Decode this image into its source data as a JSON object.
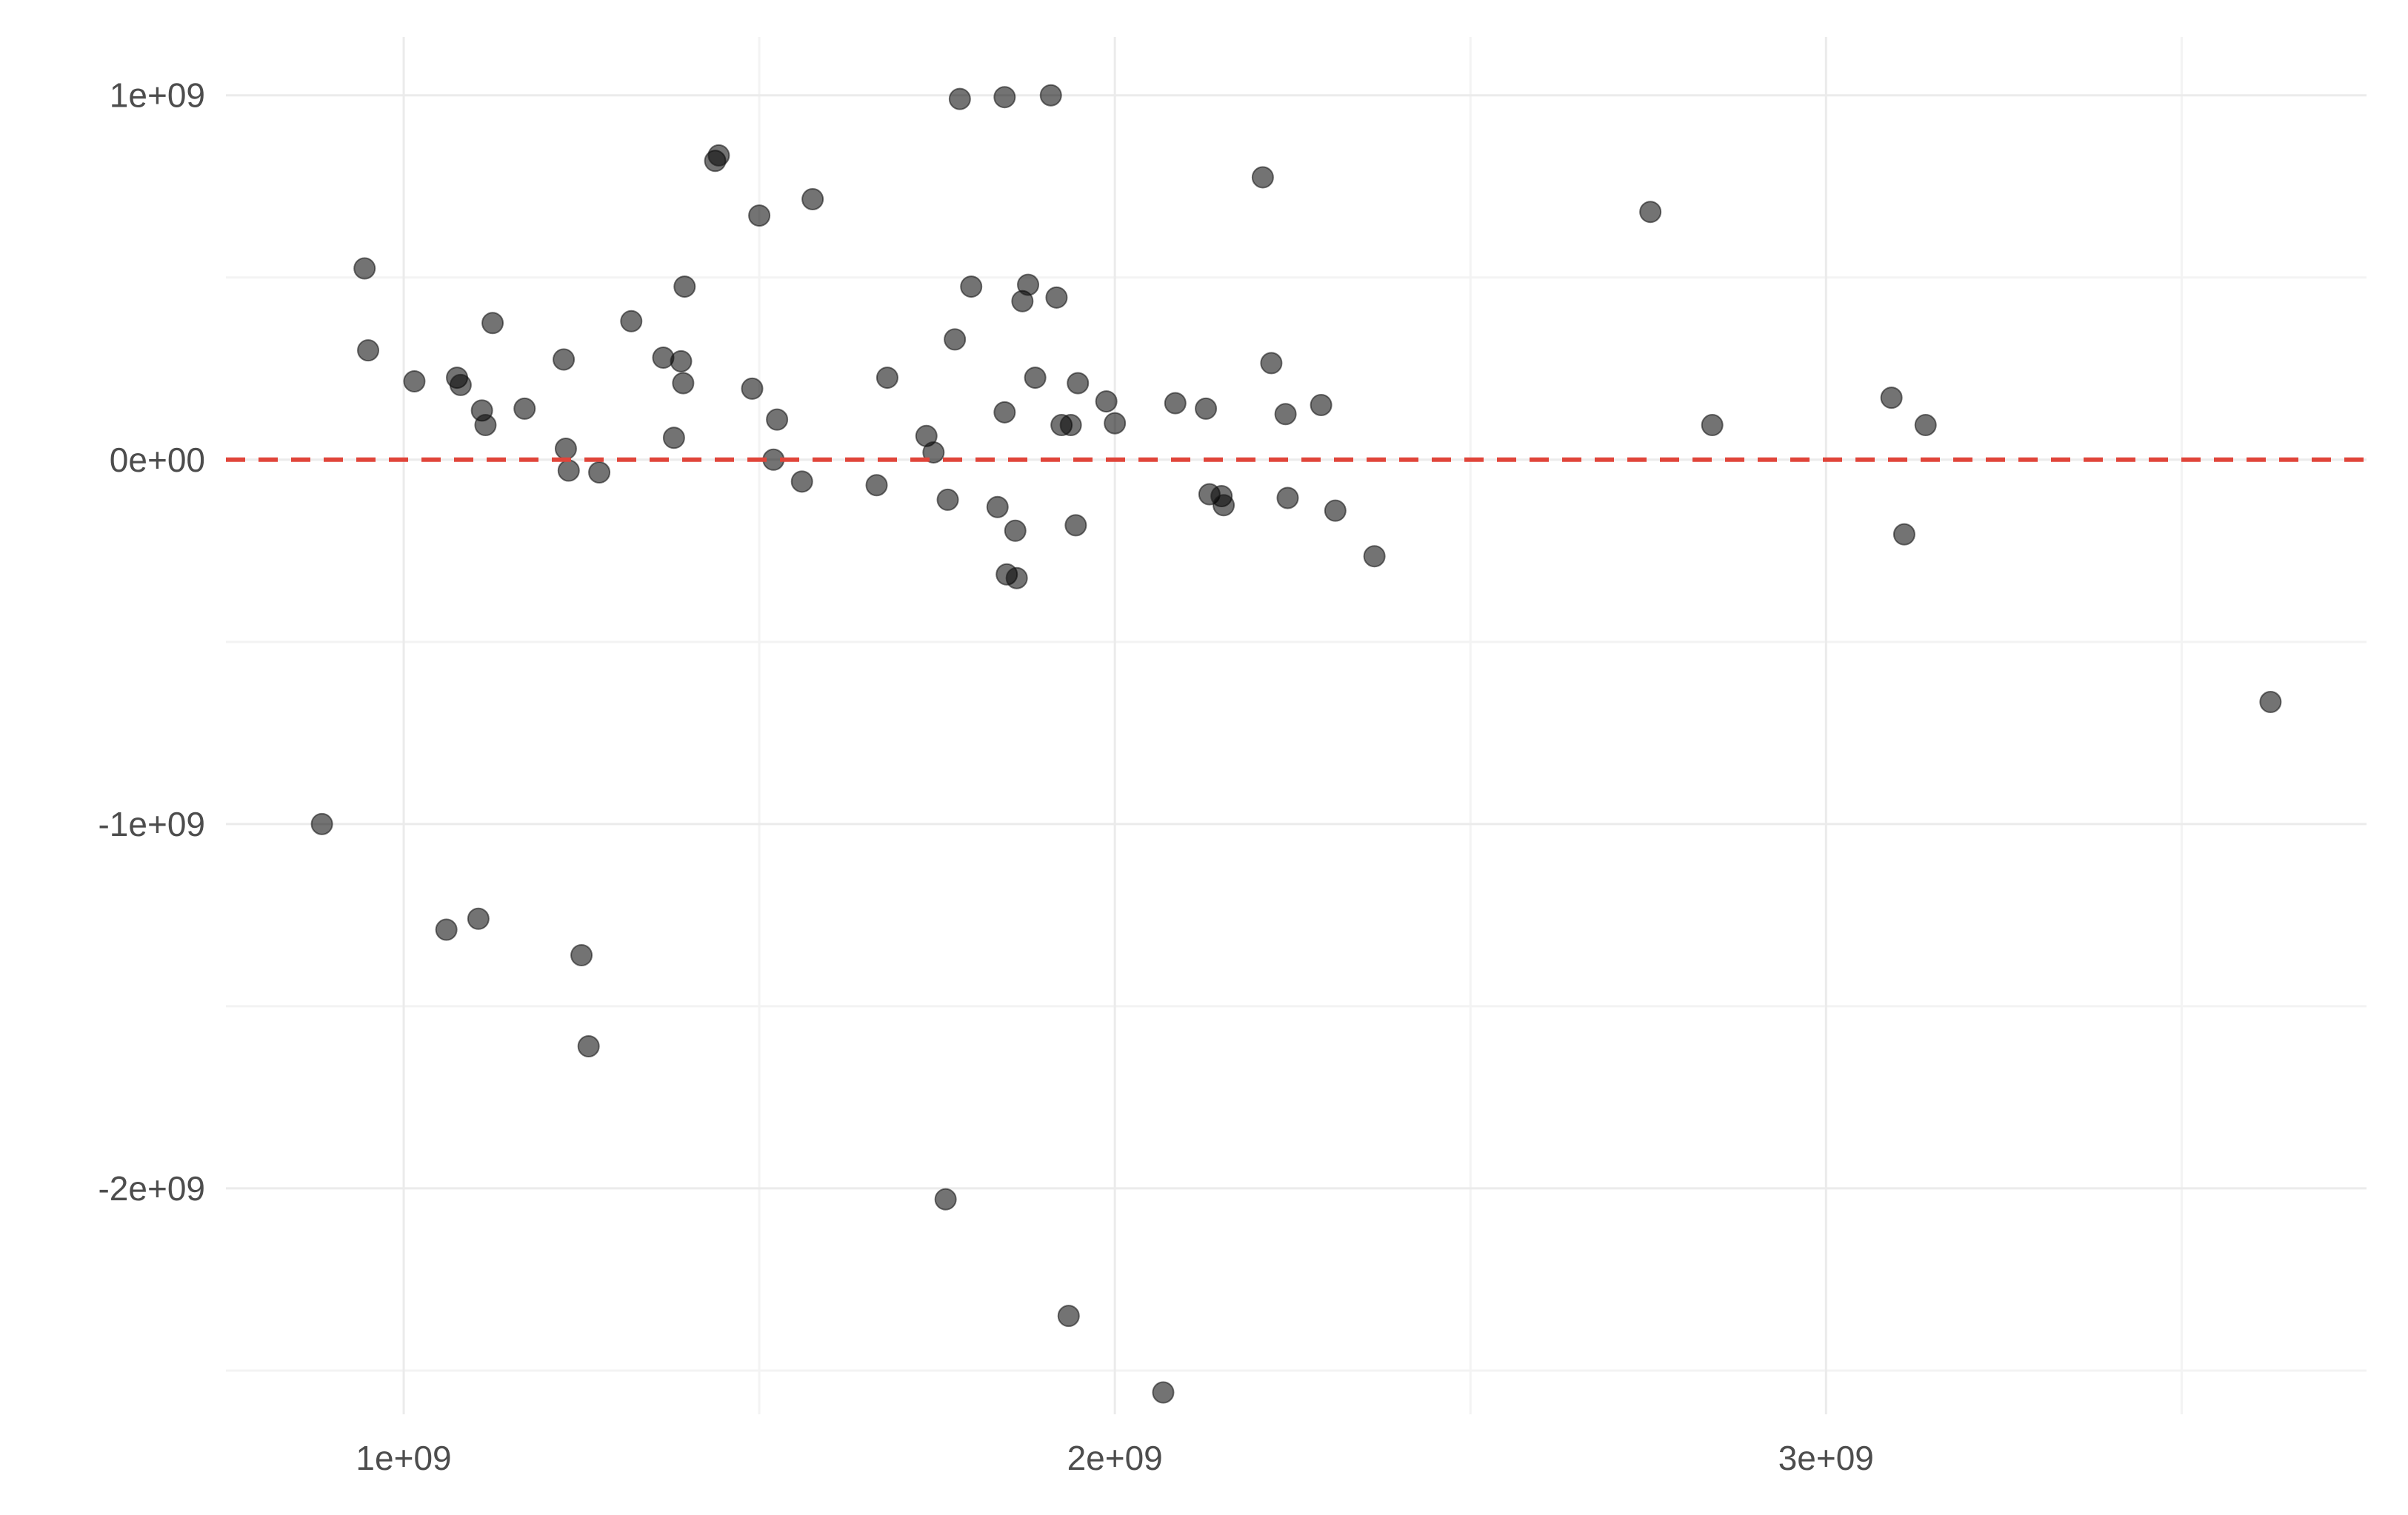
{
  "chart_data": {
    "type": "scatter",
    "title": "",
    "xlabel": "",
    "ylabel": "",
    "xlim": [
      750000000,
      3760000000
    ],
    "ylim": [
      -2620000000,
      1160000000
    ],
    "x_major_ticks": [
      1000000000,
      2000000000,
      3000000000
    ],
    "x_minor_ticks": [
      1500000000,
      2500000000,
      3500000000
    ],
    "x_tick_labels": [
      "1e+09",
      "2e+09",
      "3e+09"
    ],
    "y_major_ticks": [
      1000000000,
      0,
      -1000000000,
      -2000000000
    ],
    "y_minor_ticks": [
      500000000,
      -500000000,
      -1500000000,
      -2500000000
    ],
    "y_tick_labels": [
      "1e+09",
      "0e+00",
      "-1e+09",
      "-2e+09"
    ],
    "grid": true,
    "reference_line": {
      "y": 0,
      "style": "dashed",
      "color": "#e0453a"
    },
    "point_color": "#000000",
    "points": [
      {
        "x": 885000000,
        "y": -1000000000
      },
      {
        "x": 945000000,
        "y": 525000000
      },
      {
        "x": 950000000,
        "y": 300000000
      },
      {
        "x": 1015000000,
        "y": 215000000
      },
      {
        "x": 1060000000,
        "y": -1290000000
      },
      {
        "x": 1075000000,
        "y": 225000000
      },
      {
        "x": 1080000000,
        "y": 205000000
      },
      {
        "x": 1105000000,
        "y": -1260000000
      },
      {
        "x": 1110000000,
        "y": 135000000
      },
      {
        "x": 1115000000,
        "y": 95000000
      },
      {
        "x": 1125000000,
        "y": 375000000
      },
      {
        "x": 1170000000,
        "y": 140000000
      },
      {
        "x": 1225000000,
        "y": 275000000
      },
      {
        "x": 1228000000,
        "y": 30000000
      },
      {
        "x": 1232000000,
        "y": -30000000
      },
      {
        "x": 1250000000,
        "y": -1360000000
      },
      {
        "x": 1260000000,
        "y": -1610000000
      },
      {
        "x": 1275000000,
        "y": -35000000
      },
      {
        "x": 1320000000,
        "y": 380000000
      },
      {
        "x": 1365000000,
        "y": 280000000
      },
      {
        "x": 1380000000,
        "y": 60000000
      },
      {
        "x": 1390000000,
        "y": 270000000
      },
      {
        "x": 1393000000,
        "y": 210000000
      },
      {
        "x": 1395000000,
        "y": 475000000
      },
      {
        "x": 1438000000,
        "y": 820000000
      },
      {
        "x": 1443000000,
        "y": 835000000
      },
      {
        "x": 1490000000,
        "y": 195000000
      },
      {
        "x": 1500000000,
        "y": 670000000
      },
      {
        "x": 1520000000,
        "y": 0
      },
      {
        "x": 1525000000,
        "y": 110000000
      },
      {
        "x": 1560000000,
        "y": -60000000
      },
      {
        "x": 1575000000,
        "y": 715000000
      },
      {
        "x": 1665000000,
        "y": -70000000
      },
      {
        "x": 1680000000,
        "y": 225000000
      },
      {
        "x": 1735000000,
        "y": 65000000
      },
      {
        "x": 1745000000,
        "y": 20000000
      },
      {
        "x": 1762000000,
        "y": -2030000000
      },
      {
        "x": 1765000000,
        "y": -110000000
      },
      {
        "x": 1775000000,
        "y": 330000000
      },
      {
        "x": 1782000000,
        "y": 990000000
      },
      {
        "x": 1798000000,
        "y": 475000000
      },
      {
        "x": 1835000000,
        "y": -130000000
      },
      {
        "x": 1845000000,
        "y": 995000000
      },
      {
        "x": 1845000000,
        "y": 130000000
      },
      {
        "x": 1848000000,
        "y": -315000000
      },
      {
        "x": 1860000000,
        "y": -195000000
      },
      {
        "x": 1862000000,
        "y": -325000000
      },
      {
        "x": 1870000000,
        "y": 435000000
      },
      {
        "x": 1878000000,
        "y": 480000000
      },
      {
        "x": 1888000000,
        "y": 225000000
      },
      {
        "x": 1910000000,
        "y": 1000000000
      },
      {
        "x": 1918000000,
        "y": 445000000
      },
      {
        "x": 1925000000,
        "y": 95000000
      },
      {
        "x": 1935000000,
        "y": -2350000000
      },
      {
        "x": 1938000000,
        "y": 95000000
      },
      {
        "x": 1945000000,
        "y": -180000000
      },
      {
        "x": 1948000000,
        "y": 210000000
      },
      {
        "x": 1988000000,
        "y": 160000000
      },
      {
        "x": 2000000000,
        "y": 100000000
      },
      {
        "x": 2068000000,
        "y": -2560000000
      },
      {
        "x": 2085000000,
        "y": 155000000
      },
      {
        "x": 2128000000,
        "y": 140000000
      },
      {
        "x": 2133000000,
        "y": -95000000
      },
      {
        "x": 2150000000,
        "y": -100000000
      },
      {
        "x": 2153000000,
        "y": -125000000
      },
      {
        "x": 2208000000,
        "y": 775000000
      },
      {
        "x": 2220000000,
        "y": 265000000
      },
      {
        "x": 2240000000,
        "y": 125000000
      },
      {
        "x": 2243000000,
        "y": -105000000
      },
      {
        "x": 2290000000,
        "y": 150000000
      },
      {
        "x": 2310000000,
        "y": -140000000
      },
      {
        "x": 2365000000,
        "y": -265000000
      },
      {
        "x": 2753000000,
        "y": 680000000
      },
      {
        "x": 2840000000,
        "y": 95000000
      },
      {
        "x": 3092000000,
        "y": 170000000
      },
      {
        "x": 3110000000,
        "y": -205000000
      },
      {
        "x": 3140000000,
        "y": 95000000
      },
      {
        "x": 3625000000,
        "y": -665000000
      }
    ]
  }
}
